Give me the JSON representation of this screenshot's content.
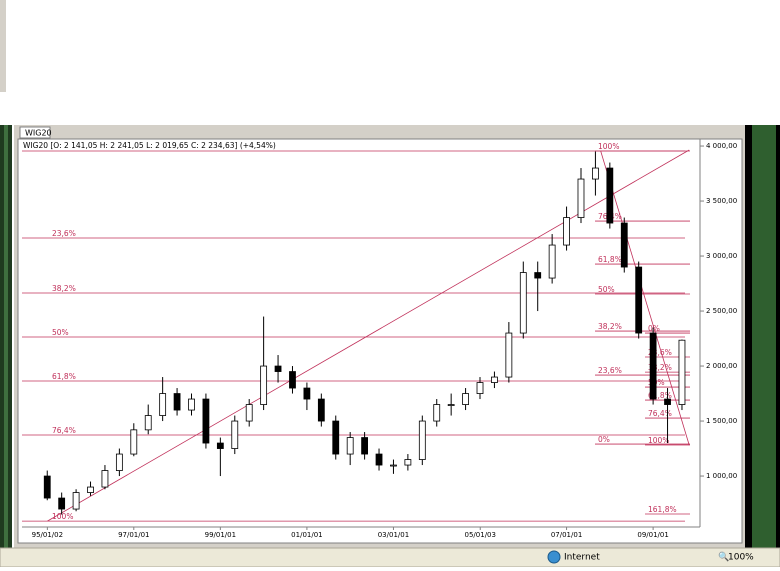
{
  "ui": {
    "tab": "WIG20",
    "info": "WIG20 [O: 2 141,05  H: 2 241,05  L: 2 019,65  C: 2 234,63] (+4,54%)",
    "status_zone": "Internet",
    "zoom": "100%"
  },
  "chart_data": {
    "type": "candlestick",
    "x": [
      "95/01/01",
      "95/05/01",
      "95/09/01",
      "96/01/01",
      "96/05/01",
      "96/09/01",
      "97/01/01",
      "97/05/01",
      "97/09/01",
      "98/01/01",
      "98/05/01",
      "98/09/01",
      "99/01/01",
      "99/05/01",
      "99/09/01",
      "00/01/01",
      "00/05/01",
      "00/09/01",
      "01/01/01",
      "01/05/01",
      "01/09/01",
      "02/01/01",
      "02/05/01",
      "02/09/01",
      "03/01/01",
      "03/05/01",
      "03/09/01",
      "04/01/01",
      "04/05/01",
      "04/09/01",
      "05/01/01",
      "05/05/01",
      "05/09/01",
      "06/01/01",
      "06/05/01",
      "06/09/01",
      "07/01/01",
      "07/05/01",
      "07/09/01",
      "08/01/01",
      "08/05/01",
      "08/09/01",
      "09/01/01",
      "09/05/01",
      "09/09/01"
    ],
    "open": [
      1000,
      800,
      700,
      850,
      900,
      1050,
      1200,
      1420,
      1550,
      1750,
      1600,
      1700,
      1300,
      1250,
      1500,
      1650,
      2000,
      1950,
      1800,
      1700,
      1500,
      1200,
      1350,
      1200,
      1100,
      1100,
      1150,
      1500,
      1650,
      1650,
      1750,
      1850,
      1900,
      2300,
      2850,
      2800,
      3100,
      3350,
      3700,
      3800,
      3300,
      2900,
      2300,
      1700,
      1650
    ],
    "high": [
      1050,
      850,
      880,
      950,
      1100,
      1250,
      1480,
      1650,
      1900,
      1800,
      1750,
      1750,
      1350,
      1550,
      1700,
      2450,
      2100,
      2000,
      1850,
      1750,
      1550,
      1400,
      1400,
      1250,
      1150,
      1200,
      1550,
      1700,
      1750,
      1800,
      1900,
      1950,
      2400,
      2950,
      2950,
      3200,
      3450,
      3800,
      3950,
      3850,
      3350,
      2950,
      2350,
      1800,
      2241
    ],
    "low": [
      780,
      650,
      680,
      820,
      880,
      1000,
      1180,
      1380,
      1500,
      1550,
      1550,
      1250,
      1000,
      1200,
      1450,
      1600,
      1850,
      1750,
      1600,
      1450,
      1150,
      1100,
      1150,
      1050,
      1020,
      1050,
      1100,
      1450,
      1550,
      1600,
      1700,
      1800,
      1850,
      2250,
      2500,
      2750,
      3050,
      3300,
      3550,
      3250,
      2850,
      2250,
      1650,
      1300,
      1600
    ],
    "close": [
      800,
      700,
      850,
      900,
      1050,
      1200,
      1420,
      1550,
      1750,
      1600,
      1700,
      1300,
      1250,
      1500,
      1650,
      2000,
      1950,
      1800,
      1700,
      1500,
      1200,
      1350,
      1200,
      1100,
      1100,
      1150,
      1500,
      1650,
      1650,
      1750,
      1850,
      1900,
      2300,
      2850,
      2800,
      3100,
      3350,
      3700,
      3800,
      3300,
      2900,
      2300,
      1700,
      1650,
      2235
    ],
    "xlim": [
      "94/06/01",
      "10/02/01"
    ],
    "xticks": [
      "95/01/02",
      "97/01/01",
      "99/01/01",
      "01/01/01",
      "03/01/01",
      "05/01/03",
      "07/01/01",
      "09/01/01"
    ],
    "ylim": [
      555,
      4055
    ],
    "yticks": [
      {
        "value": 1000,
        "label": "1 000,00"
      },
      {
        "value": 1500,
        "label": "1 500,00"
      },
      {
        "value": 2000,
        "label": "2 000,00"
      },
      {
        "value": 2500,
        "label": "2 500,00"
      },
      {
        "value": 3000,
        "label": "3 000,00"
      },
      {
        "value": 3500,
        "label": "3 500,00"
      },
      {
        "value": 4000,
        "label": "4 000,00"
      }
    ],
    "fib_color": "#c0305a",
    "fibonacci": [
      {
        "levels": [
          3955,
          3164,
          2664,
          2264,
          1864,
          1373,
          590
        ],
        "labels": [
          null,
          "23,6%",
          "38,2%",
          "50%",
          "61,8%",
          "76,4%",
          "100%"
        ]
      },
      {
        "levels": [
          3955,
          3318,
          2927,
          2655,
          2318,
          1918,
          1291
        ],
        "labels": [
          "100%",
          "76,4%",
          "61,8%",
          "50%",
          "38,2%",
          "23,6%",
          "0%"
        ]
      },
      {
        "levels": [
          2300,
          2082,
          1945,
          1809,
          1691,
          1527,
          1282,
          655
        ],
        "labels": [
          "0%",
          "23,6%",
          "38,2%",
          "50%",
          "61,8%",
          "76,4%",
          "100%",
          "161,8%"
        ]
      }
    ],
    "trendlines": [
      {
        "x": [
          "95/01/02",
          "09/11/01"
        ],
        "values": [
          590,
          3964
        ]
      },
      {
        "x": [
          "07/10/15",
          "09/11/01"
        ],
        "values": [
          3955,
          1282
        ]
      }
    ]
  }
}
